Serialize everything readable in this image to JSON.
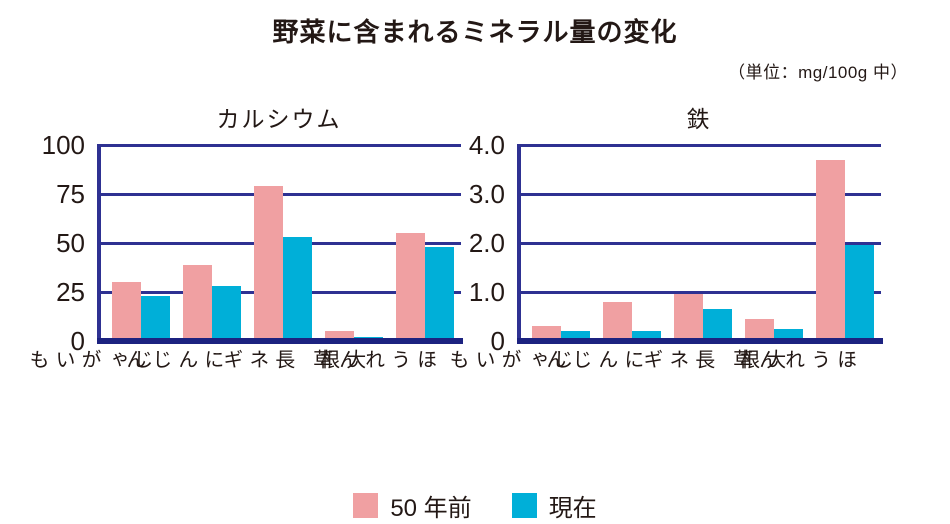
{
  "title": "野菜に含まれるミネラル量の変化",
  "unit_note": "（単位：mg/100g 中）",
  "colors": {
    "grid": "#2E3192",
    "baseline": "#1C2280",
    "text": "#231815",
    "series": [
      "#F0A0A2",
      "#00AFD8"
    ]
  },
  "legend": {
    "items": [
      {
        "label": "50 年前",
        "color": "#F0A0A2"
      },
      {
        "label": "現在",
        "color": "#00AFD8"
      }
    ]
  },
  "chart_data": [
    {
      "type": "bar",
      "title": "カルシウム",
      "categories": [
        "じゃがいも",
        "にんじん",
        "長ネギ",
        "大根",
        "ほうれん草"
      ],
      "series": [
        {
          "name": "50 年前",
          "values": [
            30,
            39,
            79,
            5,
            55
          ]
        },
        {
          "name": "現在",
          "values": [
            23,
            28,
            53,
            2,
            48
          ]
        }
      ],
      "ylim": [
        0,
        100
      ],
      "yticks": [
        0,
        25,
        50,
        75,
        100
      ],
      "ytick_labels": [
        "0",
        "25",
        "50",
        "75",
        "100"
      ],
      "grid": true,
      "legend_position": "bottom-center"
    },
    {
      "type": "bar",
      "title": "鉄",
      "categories": [
        "じゃがいも",
        "にんじん",
        "長ネギ",
        "大根",
        "ほうれん草"
      ],
      "series": [
        {
          "name": "50 年前",
          "values": [
            0.3,
            0.8,
            0.95,
            0.45,
            3.7
          ]
        },
        {
          "name": "現在",
          "values": [
            0.2,
            0.2,
            0.65,
            0.25,
            1.95
          ]
        }
      ],
      "ylim": [
        0,
        4.0
      ],
      "yticks": [
        0,
        1.0,
        2.0,
        3.0,
        4.0
      ],
      "ytick_labels": [
        "0",
        "1.0",
        "2.0",
        "3.0",
        "4.0"
      ],
      "grid": true,
      "legend_position": "bottom-center"
    }
  ]
}
